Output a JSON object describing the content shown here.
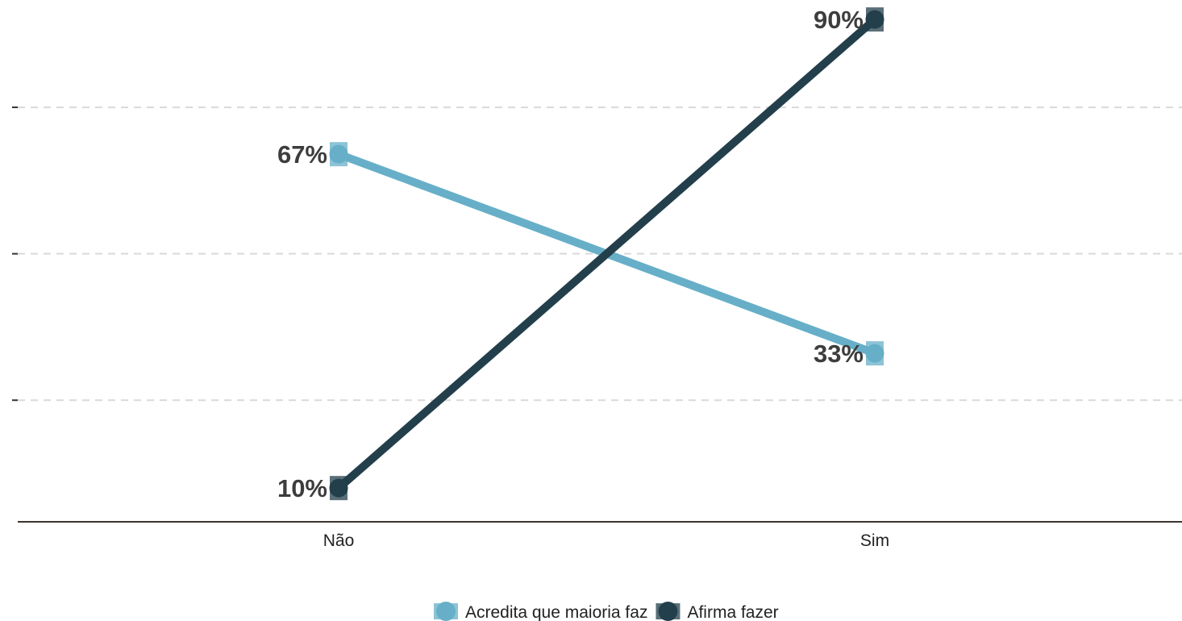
{
  "chart_data": {
    "type": "line",
    "categories": [
      "Não",
      "Sim"
    ],
    "ylim": [
      0,
      1
    ],
    "y_format": "percent",
    "gridlines_at": [
      0.25,
      0.5,
      0.75
    ],
    "grid": true,
    "legend_position": "bottom",
    "series": [
      {
        "name": "Acredita que maioria faz",
        "values": [
          0.67,
          0.33
        ],
        "labels": [
          "67%",
          "33%"
        ],
        "color": "#67afc8"
      },
      {
        "name": "Afirma fazer",
        "values": [
          0.1,
          0.9
        ],
        "labels": [
          "10%",
          "90%"
        ],
        "color": "#233f4b"
      }
    ]
  }
}
